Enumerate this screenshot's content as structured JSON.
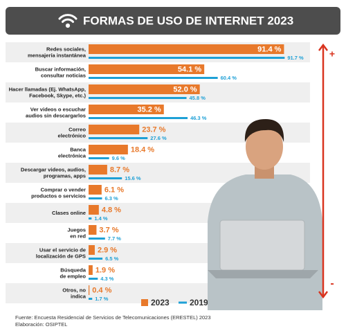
{
  "chart_data": {
    "type": "bar",
    "title": "FORMAS DE USO DE INTERNET 2023",
    "categories": [
      "Redes sociales,\nmensajería instantánea",
      "Buscar información,\nconsultar noticias",
      "Hacer llamadas (Ej. WhatsApp,\nFacebook, Skype, etc.)",
      "Ver videos o escuchar\naudios sin descargarlos",
      "Correo\nelectrónico",
      "Banca\nelectrónica",
      "Descargar videos, audios,\nprogramas, apps",
      "Comprar o vender\nproductos o servicios",
      "Clases online",
      "Juegos\nen red",
      "Usar el servicio de\nlocalización de GPS",
      "Búsqueda\nde empleo",
      "Otros, no\nindica"
    ],
    "series": [
      {
        "name": "2023",
        "color": "#e8792b",
        "values": [
          91.4,
          54.1,
          52.0,
          35.2,
          23.7,
          18.4,
          8.7,
          6.1,
          4.8,
          3.7,
          2.9,
          1.9,
          0.4
        ],
        "value_labels": [
          "91.4 %",
          "54.1 %",
          "52.0 %",
          "35.2 %",
          "23.7 %",
          "18.4 %",
          "8.7 %",
          "6.1 %",
          "4.8 %",
          "3.7 %",
          "2.9 %",
          "1.9 %",
          "0.4 %"
        ]
      },
      {
        "name": "2019",
        "color": "#1ea0d6",
        "values": [
          91.7,
          60.4,
          45.8,
          46.3,
          27.6,
          9.6,
          15.6,
          6.3,
          1.4,
          7.7,
          6.5,
          4.3,
          1.7
        ],
        "value_labels": [
          "91.7 %",
          "60.4 %",
          "45.8 %",
          "46.3 %",
          "27.6 %",
          "9.6 %",
          "15.6 %",
          "6.3 %",
          "1.4 %",
          "7.7 %",
          "6.5 %",
          "4.3 %",
          "1.7 %"
        ]
      }
    ],
    "annotations": [
      "+",
      "-"
    ],
    "source": "Fuente: Encuesta Residencial de Servicios de Telecomunicaciones (ERESTEL) 2023",
    "credit": "Elaboración: OSIPTEL"
  }
}
